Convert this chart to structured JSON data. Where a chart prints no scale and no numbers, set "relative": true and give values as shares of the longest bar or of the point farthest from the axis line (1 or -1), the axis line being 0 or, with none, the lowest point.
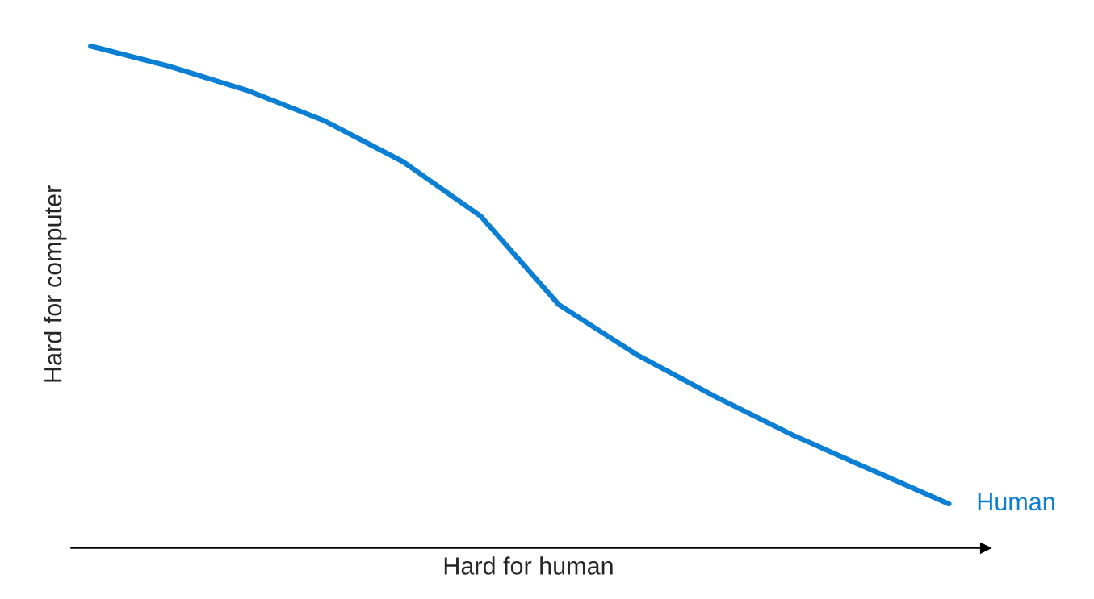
{
  "chart_data": {
    "type": "line",
    "relative": true,
    "xlabel": "Hard for human",
    "ylabel": "Hard for computer",
    "categories": [
      null,
      null,
      null,
      null,
      null,
      null,
      null,
      null,
      null,
      null,
      null,
      null
    ],
    "series": [
      {
        "name": "Human",
        "color": "#0a7fd4",
        "values": [
          1.0,
          0.96,
          0.912,
          0.851,
          0.77,
          0.661,
          0.485,
          0.385,
          0.302,
          0.225,
          0.156,
          0.088
        ]
      }
    ],
    "grid": false,
    "legend": false,
    "marker": "none",
    "line_style": "solid"
  }
}
